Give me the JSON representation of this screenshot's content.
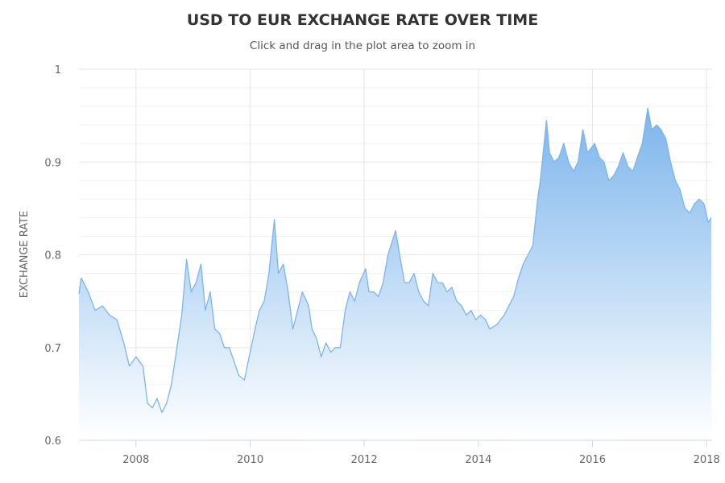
{
  "header": {
    "title": "USD TO EUR EXCHANGE RATE OVER TIME",
    "subtitle": "Click and drag in the plot area to zoom in"
  },
  "chart_data": {
    "type": "area",
    "ylabel": "EXCHANGE RATE",
    "xlabel": "",
    "xlim": [
      "2007-01-01",
      "2018-02-05"
    ],
    "ylim": [
      0.6,
      1.0
    ],
    "y_ticks": [
      0.6,
      0.7,
      0.8,
      0.9,
      1
    ],
    "y_tick_labels": [
      "0.6",
      "0.7",
      "0.8",
      "0.9",
      "1"
    ],
    "x_ticks": [
      "2008-01-01",
      "2010-01-01",
      "2012-01-01",
      "2014-01-01",
      "2016-01-01",
      "2018-01-01"
    ],
    "x_tick_labels": [
      "2008",
      "2010",
      "2012",
      "2014",
      "2016",
      "2018"
    ],
    "grid": true,
    "legend": "none",
    "colors": {
      "line": "#7cb5ec",
      "fill_top": "#7cb5ec",
      "fill_bottom": "#ffffff"
    },
    "series": [
      {
        "x": [
          "2007-01-01",
          "2007-01-15",
          "2007-02-01",
          "2007-03-01",
          "2007-04-15",
          "2007-06-01",
          "2007-07-15",
          "2007-09-01",
          "2007-10-15",
          "2007-11-20",
          "2008-01-01",
          "2008-02-15",
          "2008-03-15",
          "2008-04-15",
          "2008-05-15",
          "2008-06-15",
          "2008-07-15",
          "2008-08-15",
          "2008-09-15",
          "2008-10-20",
          "2008-11-20",
          "2008-12-20",
          "2009-01-20",
          "2009-02-20",
          "2009-03-20",
          "2009-04-20",
          "2009-05-20",
          "2009-06-20",
          "2009-07-20",
          "2009-08-20",
          "2009-09-20",
          "2009-10-20",
          "2009-11-25",
          "2010-01-01",
          "2010-02-01",
          "2010-03-01",
          "2010-04-01",
          "2010-05-01",
          "2010-06-05",
          "2010-07-01",
          "2010-08-01",
          "2010-09-01",
          "2010-10-01",
          "2010-11-01",
          "2010-12-01",
          "2011-01-10",
          "2011-02-01",
          "2011-03-01",
          "2011-04-01",
          "2011-05-01",
          "2011-06-01",
          "2011-07-01",
          "2011-08-01",
          "2011-09-01",
          "2011-10-01",
          "2011-11-01",
          "2011-12-01",
          "2012-01-10",
          "2012-02-01",
          "2012-03-01",
          "2012-04-01",
          "2012-05-01",
          "2012-06-01",
          "2012-07-20",
          "2012-08-15",
          "2012-09-15",
          "2012-10-15",
          "2012-11-15",
          "2012-12-15",
          "2013-01-15",
          "2013-02-15",
          "2013-03-15",
          "2013-04-15",
          "2013-05-15",
          "2013-06-15",
          "2013-07-15",
          "2013-08-15",
          "2013-09-15",
          "2013-10-15",
          "2013-11-15",
          "2013-12-15",
          "2014-01-15",
          "2014-02-15",
          "2014-03-15",
          "2014-05-01",
          "2014-06-15",
          "2014-07-15",
          "2014-08-15",
          "2014-09-15",
          "2014-10-15",
          "2014-11-15",
          "2014-12-15",
          "2015-01-15",
          "2015-02-01",
          "2015-03-13",
          "2015-04-01",
          "2015-05-01",
          "2015-06-01",
          "2015-07-01",
          "2015-08-01",
          "2015-09-01",
          "2015-10-01",
          "2015-11-01",
          "2015-12-01",
          "2016-01-15",
          "2016-02-15",
          "2016-03-15",
          "2016-04-15",
          "2016-05-15",
          "2016-06-15",
          "2016-07-15",
          "2016-08-15",
          "2016-09-15",
          "2016-10-15",
          "2016-11-15",
          "2016-12-20",
          "2017-01-15",
          "2017-02-15",
          "2017-03-15",
          "2017-04-15",
          "2017-05-15",
          "2017-06-15",
          "2017-07-15",
          "2017-08-15",
          "2017-09-15",
          "2017-10-15",
          "2017-11-15",
          "2017-12-15",
          "2018-01-10",
          "2018-01-31"
        ],
        "values": [
          0.758,
          0.775,
          0.77,
          0.76,
          0.74,
          0.745,
          0.735,
          0.73,
          0.705,
          0.68,
          0.69,
          0.68,
          0.64,
          0.635,
          0.645,
          0.63,
          0.64,
          0.66,
          0.695,
          0.735,
          0.795,
          0.76,
          0.77,
          0.79,
          0.74,
          0.76,
          0.72,
          0.715,
          0.7,
          0.7,
          0.685,
          0.67,
          0.665,
          0.695,
          0.72,
          0.74,
          0.75,
          0.78,
          0.838,
          0.78,
          0.79,
          0.76,
          0.72,
          0.74,
          0.76,
          0.745,
          0.72,
          0.71,
          0.69,
          0.705,
          0.695,
          0.7,
          0.7,
          0.74,
          0.76,
          0.75,
          0.77,
          0.785,
          0.76,
          0.76,
          0.755,
          0.77,
          0.8,
          0.826,
          0.8,
          0.77,
          0.77,
          0.78,
          0.76,
          0.75,
          0.745,
          0.78,
          0.77,
          0.77,
          0.76,
          0.765,
          0.75,
          0.745,
          0.735,
          0.74,
          0.73,
          0.735,
          0.73,
          0.72,
          0.725,
          0.735,
          0.745,
          0.755,
          0.775,
          0.79,
          0.8,
          0.81,
          0.86,
          0.88,
          0.945,
          0.91,
          0.9,
          0.905,
          0.92,
          0.9,
          0.89,
          0.9,
          0.935,
          0.91,
          0.92,
          0.905,
          0.9,
          0.88,
          0.885,
          0.895,
          0.91,
          0.895,
          0.89,
          0.905,
          0.92,
          0.958,
          0.935,
          0.94,
          0.935,
          0.925,
          0.9,
          0.88,
          0.87,
          0.85,
          0.845,
          0.855,
          0.86,
          0.855,
          0.835,
          0.84
        ]
      }
    ]
  }
}
